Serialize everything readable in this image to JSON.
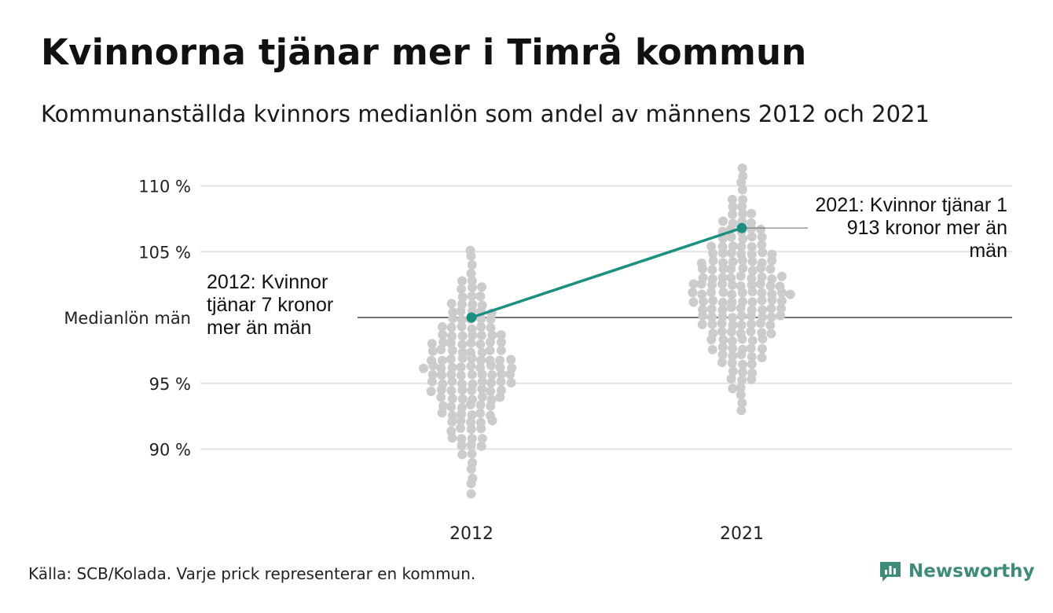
{
  "title": "Kvinnorna tjänar mer i Timrå kommun",
  "subtitle": "Kommunanställda kvinnors medianlön som andel av männens 2012 och 2021",
  "source": "Källa: SCB/Kolada. Varje prick representerar en kommun.",
  "brand": "Newsworthy",
  "annotations": {
    "y2012": "2012: Kvinnor tjänar 7 kronor mer än män",
    "y2021": "2021: Kvinnor tjänar 1 913 kronor mer än män"
  },
  "colors": {
    "dots": "#cccccc",
    "highlight": "#1a9080",
    "reference_line": "#222222",
    "grid": "#e3e3e3",
    "brand": "#3d8c79"
  },
  "chart_data": {
    "type": "scatter",
    "style": "beeswarm",
    "categories": [
      "2012",
      "2021"
    ],
    "ylim": [
      86,
      111.5
    ],
    "yticks": [
      {
        "value": 90,
        "label": "90 %"
      },
      {
        "value": 95,
        "label": "95 %"
      },
      {
        "value": 105,
        "label": "105 %"
      },
      {
        "value": 110,
        "label": "110 %"
      }
    ],
    "reference_line": {
      "value": 100,
      "label": "Medianlön män"
    },
    "highlight": {
      "name": "Timrå kommun",
      "values": [
        100.0,
        106.8
      ]
    },
    "distribution_range": {
      "2012": {
        "min": 86.5,
        "max": 105.2
      },
      "2021": {
        "min": 92.5,
        "max": 111.4
      }
    }
  }
}
